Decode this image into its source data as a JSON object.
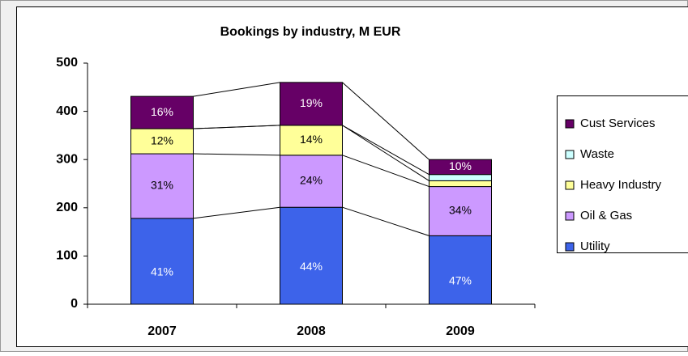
{
  "chart_data": {
    "type": "stacked_bar",
    "title": "Bookings by industry, M EUR",
    "categories": [
      "2007",
      "2008",
      "2009"
    ],
    "series": [
      {
        "name": "Utility",
        "color": "#3d63ea",
        "values": [
          178,
          201,
          142
        ],
        "percent_labels": [
          "41%",
          "44%",
          "47%"
        ]
      },
      {
        "name": "Oil & Gas",
        "color": "#cc99ff",
        "values": [
          134,
          108,
          102
        ],
        "percent_labels": [
          "31%",
          "24%",
          "34%"
        ]
      },
      {
        "name": "Heavy Industry",
        "color": "#ffff99",
        "values": [
          52,
          62,
          12
        ],
        "percent_labels": [
          "12%",
          "14%",
          null
        ]
      },
      {
        "name": "Waste",
        "color": "#ccffff",
        "values": [
          0,
          0,
          13
        ],
        "percent_labels": [
          null,
          null,
          null
        ]
      },
      {
        "name": "Cust Services",
        "color": "#660066",
        "values": [
          67,
          89,
          31
        ],
        "percent_labels": [
          "16%",
          "19%",
          "10%"
        ]
      }
    ],
    "ylim": [
      0,
      500
    ],
    "yticks": [
      0,
      100,
      200,
      300,
      400,
      500
    ],
    "grid": false,
    "legend": "right"
  }
}
